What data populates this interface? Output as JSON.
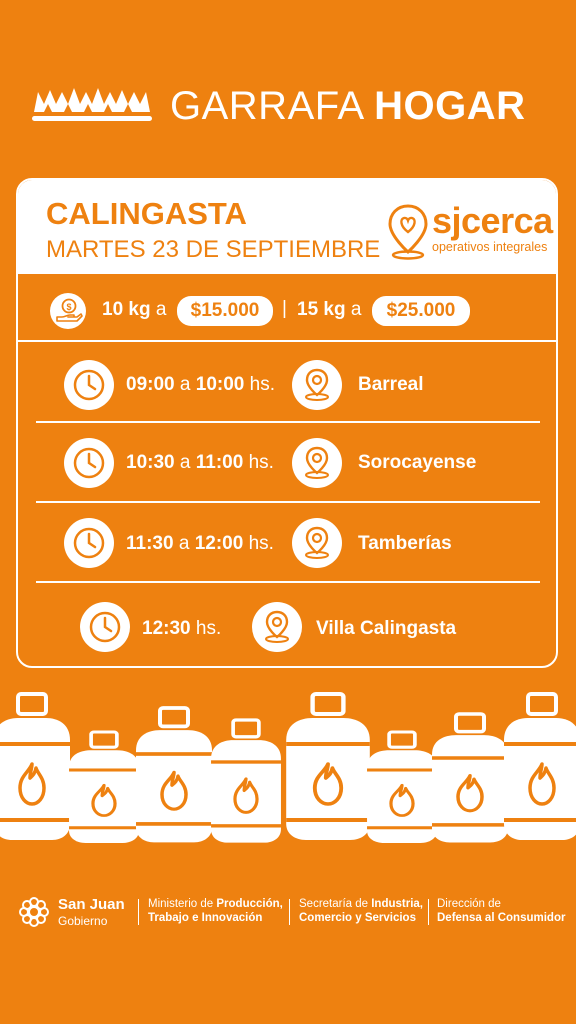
{
  "header": {
    "title_light": "GARRAFA",
    "title_bold": "HOGAR"
  },
  "card": {
    "town": "CALINGASTA",
    "date": "MARTES 23 DE SEPTIEMBRE",
    "brand": {
      "name": "sjcerca",
      "tagline": "operativos integrales"
    },
    "prices": [
      {
        "size": "10 kg",
        "conn": "a",
        "price": "$15.000"
      },
      {
        "size": "15 kg",
        "conn": "a",
        "price": "$25.000"
      }
    ],
    "separator": "|",
    "schedule": [
      {
        "start": "09:00",
        "conn": "a",
        "end": "10:00",
        "unit": "hs.",
        "place": "Barreal"
      },
      {
        "start": "10:30",
        "conn": "a",
        "end": "11:00",
        "unit": "hs.",
        "place": "Sorocayense"
      },
      {
        "start": "11:30",
        "conn": "a",
        "end": "12:00",
        "unit": "hs.",
        "place": "Tamberías"
      },
      {
        "start": "12:30",
        "conn": "",
        "end": "",
        "unit": "hs.",
        "place": "Villa Calingasta"
      }
    ]
  },
  "footer": {
    "gov_name": "San Juan",
    "gov_sub": "Gobierno",
    "ministry": {
      "pre": "Ministerio de ",
      "bold1": "Producción,",
      "bold2": "Trabajo e Innovación"
    },
    "secretaria": {
      "pre": "Secretaría de ",
      "bold1": "Industria,",
      "bold2": "Comercio y Servicios"
    },
    "direccion": {
      "line1": "Dirección de",
      "bold2": "Defensa al Consumidor"
    }
  },
  "icons": [
    "flame-crown-icon",
    "money-hand-icon",
    "clock-icon",
    "location-pin-icon",
    "gas-cylinder-icon",
    "sjcerca-heart-pin-icon",
    "san-juan-sun-icon"
  ],
  "colors": {
    "background": "#EE8110",
    "foreground": "#FFFFFF"
  }
}
